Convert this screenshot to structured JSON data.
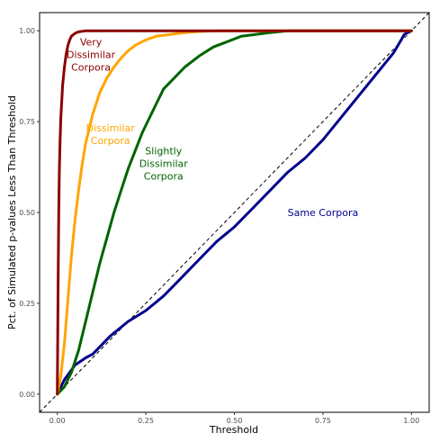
{
  "chart_data": {
    "type": "line",
    "xlabel": "Threshold",
    "ylabel": "Pct. of Simulated p-values Less Than Threshold",
    "xlim": [
      -0.05,
      1.05
    ],
    "ylim": [
      -0.05,
      1.05
    ],
    "x_ticks": [
      0.0,
      0.25,
      0.5,
      0.75,
      1.0
    ],
    "x_tick_labels": [
      "0.00",
      "0.25",
      "0.50",
      "0.75",
      "1.00"
    ],
    "y_ticks": [
      0.0,
      0.25,
      0.5,
      0.75,
      1.0
    ],
    "y_tick_labels": [
      "0.00",
      "0.25",
      "0.50",
      "0.75",
      "1.00"
    ],
    "grid": false,
    "reference_line": {
      "x": [
        0,
        1
      ],
      "y": [
        0,
        1
      ],
      "style": "dashed",
      "color": "#000000"
    },
    "series": [
      {
        "name": "Very Dissimilar Corpora",
        "color": "#8b0000",
        "x": [
          0.0,
          0.002,
          0.004,
          0.006,
          0.008,
          0.01,
          0.015,
          0.02,
          0.025,
          0.03,
          0.035,
          0.04,
          0.05,
          0.06,
          0.08,
          0.1,
          0.15,
          0.2,
          0.3,
          0.5,
          0.75,
          1.0
        ],
        "y": [
          0.0,
          0.28,
          0.5,
          0.62,
          0.7,
          0.76,
          0.85,
          0.9,
          0.935,
          0.96,
          0.975,
          0.985,
          0.993,
          0.997,
          1.0,
          1.0,
          1.0,
          1.0,
          1.0,
          1.0,
          1.0,
          1.0
        ]
      },
      {
        "name": "Dissimilar Corpora",
        "color": "#ffa500",
        "x": [
          0.0,
          0.01,
          0.02,
          0.03,
          0.04,
          0.05,
          0.06,
          0.07,
          0.08,
          0.09,
          0.1,
          0.12,
          0.14,
          0.16,
          0.18,
          0.2,
          0.22,
          0.25,
          0.28,
          0.32,
          0.36,
          0.4,
          0.45,
          0.5,
          0.6,
          0.75,
          1.0
        ],
        "y": [
          0.0,
          0.05,
          0.14,
          0.26,
          0.38,
          0.48,
          0.56,
          0.63,
          0.69,
          0.73,
          0.77,
          0.83,
          0.87,
          0.9,
          0.925,
          0.945,
          0.96,
          0.975,
          0.985,
          0.99,
          0.995,
          0.998,
          1.0,
          1.0,
          1.0,
          1.0,
          1.0
        ]
      },
      {
        "name": "Slightly Dissimilar Corpora",
        "color": "#006400",
        "x": [
          0.0,
          0.02,
          0.04,
          0.06,
          0.08,
          0.1,
          0.12,
          0.14,
          0.16,
          0.18,
          0.2,
          0.22,
          0.24,
          0.26,
          0.28,
          0.3,
          0.33,
          0.36,
          0.4,
          0.44,
          0.48,
          0.52,
          0.56,
          0.6,
          0.65,
          0.7,
          0.8,
          1.0
        ],
        "y": [
          0.0,
          0.02,
          0.06,
          0.12,
          0.2,
          0.28,
          0.36,
          0.43,
          0.5,
          0.56,
          0.62,
          0.67,
          0.72,
          0.76,
          0.8,
          0.84,
          0.87,
          0.9,
          0.93,
          0.955,
          0.97,
          0.985,
          0.99,
          0.995,
          1.0,
          1.0,
          1.0,
          1.0
        ]
      },
      {
        "name": "Same Corpora",
        "color": "#00008b",
        "x": [
          0.0,
          0.02,
          0.05,
          0.08,
          0.1,
          0.15,
          0.2,
          0.25,
          0.3,
          0.35,
          0.4,
          0.45,
          0.5,
          0.55,
          0.6,
          0.65,
          0.7,
          0.75,
          0.8,
          0.85,
          0.9,
          0.95,
          0.98,
          1.0
        ],
        "y": [
          0.0,
          0.04,
          0.08,
          0.1,
          0.11,
          0.16,
          0.2,
          0.23,
          0.27,
          0.32,
          0.37,
          0.42,
          0.46,
          0.51,
          0.56,
          0.61,
          0.65,
          0.7,
          0.76,
          0.82,
          0.88,
          0.94,
          0.99,
          1.0
        ]
      }
    ],
    "annotations": [
      {
        "lines": [
          "Very",
          "Dissimilar",
          "Corpora"
        ],
        "x": 0.095,
        "y": 0.935,
        "color": "#8b0000"
      },
      {
        "lines": [
          "Dissimilar",
          "Corpora"
        ],
        "x": 0.15,
        "y": 0.715,
        "color": "#ffa500"
      },
      {
        "lines": [
          "Slightly",
          "Dissimilar",
          "Corpora"
        ],
        "x": 0.3,
        "y": 0.635,
        "color": "#006400"
      },
      {
        "lines": [
          "Same Corpora"
        ],
        "x": 0.75,
        "y": 0.5,
        "color": "#00008b"
      }
    ]
  }
}
